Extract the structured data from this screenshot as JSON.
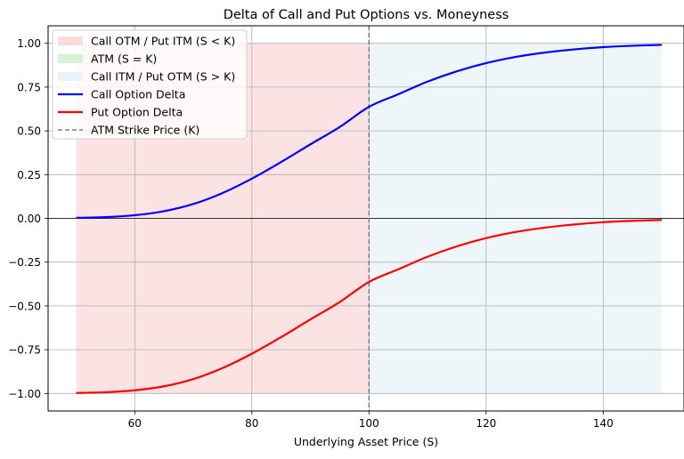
{
  "chart_data": {
    "type": "line",
    "title": "Delta of Call and Put Options vs. Moneyness",
    "xlabel": "Underlying Asset Price (S)",
    "ylabel": "",
    "xlim": [
      45.2,
      153.8
    ],
    "ylim": [
      -1.1,
      1.1
    ],
    "x_ticks": [
      60,
      80,
      100,
      120,
      140
    ],
    "x_tick_labels": [
      "60",
      "80",
      "100",
      "120",
      "140"
    ],
    "y_ticks": [
      1.0,
      0.75,
      0.5,
      0.25,
      0.0,
      -0.25,
      -0.5,
      -0.75,
      -1.0
    ],
    "y_tick_labels": [
      "1.00",
      "0.75",
      "0.50",
      "0.25",
      "0.00",
      "−0.25",
      "−0.50",
      "−0.75",
      "−1.00"
    ],
    "grid": true,
    "legend_position": "top-left",
    "zero_line": true,
    "strike": 100,
    "regions": [
      {
        "name": "Call OTM / Put ITM (S < K)",
        "x": [
          50,
          100
        ],
        "y": [
          -1,
          1
        ],
        "color": "#f8d0d0"
      },
      {
        "name": "ATM (S = K)",
        "x": [
          100,
          100
        ],
        "y": [
          -1,
          1
        ],
        "color": "#c8f0c8"
      },
      {
        "name": "Call ITM / Put OTM (S > K)",
        "x": [
          100,
          150
        ],
        "y": [
          -1,
          1
        ],
        "color": "#e2f0f7"
      }
    ],
    "series": [
      {
        "name": "Call Option Delta",
        "color": "#0000ff",
        "x": [
          50,
          55,
          60,
          65,
          70,
          75,
          80,
          85,
          90,
          95,
          100,
          105,
          110,
          115,
          120,
          125,
          130,
          135,
          140,
          145,
          150
        ],
        "values": [
          0.003,
          0.007,
          0.018,
          0.041,
          0.082,
          0.145,
          0.227,
          0.322,
          0.423,
          0.522,
          0.637,
          0.709,
          0.781,
          0.84,
          0.887,
          0.922,
          0.947,
          0.965,
          0.978,
          0.986,
          0.991
        ]
      },
      {
        "name": "Put Option Delta",
        "color": "#ff0000",
        "x": [
          50,
          55,
          60,
          65,
          70,
          75,
          80,
          85,
          90,
          95,
          100,
          105,
          110,
          115,
          120,
          125,
          130,
          135,
          140,
          145,
          150
        ],
        "values": [
          -0.997,
          -0.993,
          -0.982,
          -0.959,
          -0.918,
          -0.855,
          -0.773,
          -0.678,
          -0.577,
          -0.478,
          -0.363,
          -0.291,
          -0.219,
          -0.16,
          -0.113,
          -0.078,
          -0.053,
          -0.035,
          -0.022,
          -0.014,
          -0.009
        ]
      },
      {
        "name": "ATM Strike Price (K)",
        "color": "#808080",
        "style": "dashed"
      }
    ],
    "legend": [
      {
        "label": "Call OTM / Put ITM (S < K)",
        "kind": "patch",
        "color": "#f8d0d0"
      },
      {
        "label": "ATM (S = K)",
        "kind": "patch",
        "color": "#c8f0c8"
      },
      {
        "label": "Call ITM / Put OTM (S > K)",
        "kind": "patch",
        "color": "#e2f0f7"
      },
      {
        "label": "Call Option Delta",
        "kind": "line",
        "color": "#0000ff"
      },
      {
        "label": "Put Option Delta",
        "kind": "line",
        "color": "#ff0000"
      },
      {
        "label": "ATM Strike Price (K)",
        "kind": "dashed",
        "color": "#808080"
      }
    ]
  }
}
